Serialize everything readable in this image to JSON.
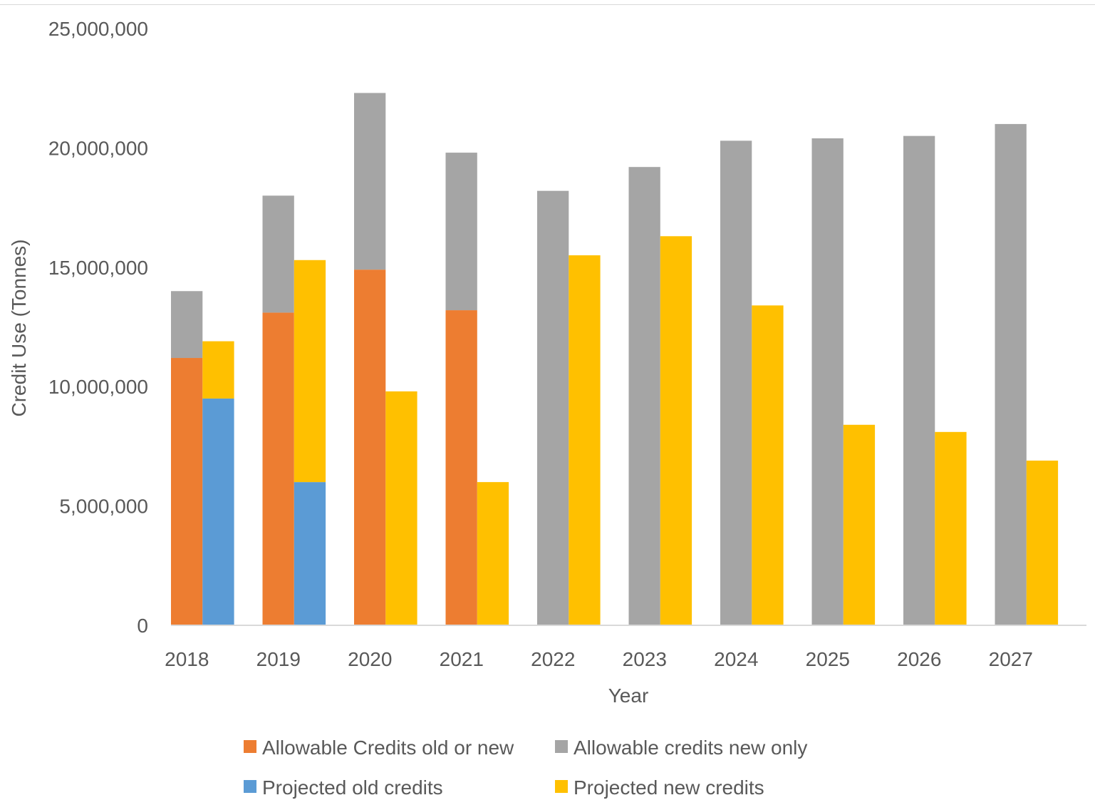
{
  "chart_data": {
    "type": "bar",
    "categories": [
      "2018",
      "2019",
      "2020",
      "2021",
      "2022",
      "2023",
      "2024",
      "2025",
      "2026",
      "2027"
    ],
    "stacks": [
      {
        "name": "allowable",
        "series": [
          {
            "name": "Allowable Credits old or new",
            "color": "#ED7D31",
            "values": [
              11200000,
              13100000,
              14900000,
              13200000,
              0,
              0,
              0,
              0,
              0,
              0
            ]
          },
          {
            "name": "Allowable credits new only",
            "color": "#A5A5A5",
            "values": [
              2800000,
              4900000,
              7400000,
              6600000,
              18200000,
              19200000,
              20300000,
              20400000,
              20500000,
              21000000
            ]
          }
        ]
      },
      {
        "name": "projected",
        "series": [
          {
            "name": "Projected old credits",
            "color": "#5B9BD5",
            "values": [
              9500000,
              6000000,
              0,
              0,
              0,
              0,
              0,
              0,
              0,
              0
            ]
          },
          {
            "name": "Projected new credits",
            "color": "#FFC000",
            "values": [
              2400000,
              9300000,
              9800000,
              6000000,
              15500000,
              16300000,
              13400000,
              8400000,
              8100000,
              6900000
            ]
          }
        ]
      }
    ],
    "ylim": [
      0,
      25000000
    ],
    "yticks": [
      "0",
      "5,000,000",
      "10,000,000",
      "15,000,000",
      "20,000,000",
      "25,000,000"
    ],
    "xlabel": "Year",
    "ylabel": "Credit Use (Tonnes)",
    "grid": false,
    "legend": {
      "position": "bottom",
      "items": [
        {
          "label": "Allowable Credits old or new",
          "color": "#ED7D31"
        },
        {
          "label": "Allowable credits new only",
          "color": "#A5A5A5"
        },
        {
          "label": "Projected old credits",
          "color": "#5B9BD5"
        },
        {
          "label": "Projected new credits",
          "color": "#FFC000"
        }
      ]
    }
  }
}
